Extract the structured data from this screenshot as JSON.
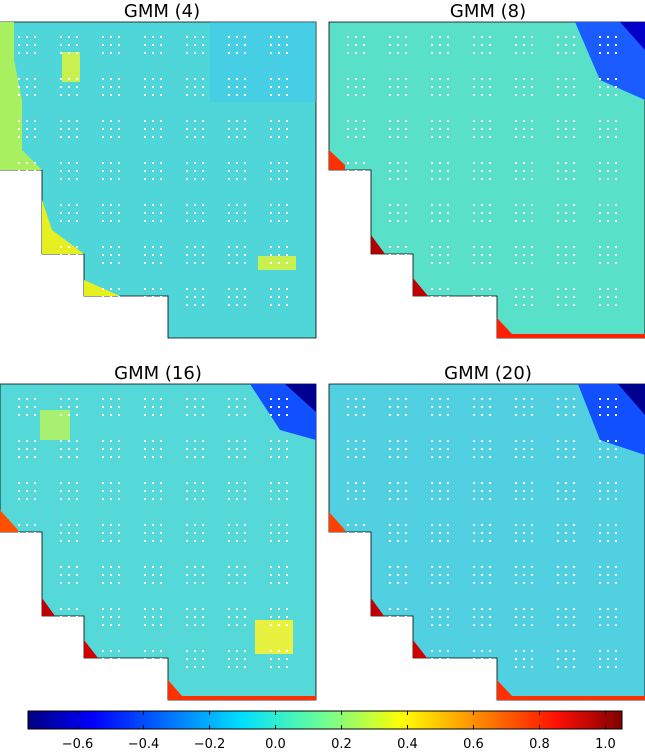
{
  "chart_data": {
    "type": "heatmap",
    "panels": [
      {
        "title": "GMM (4)"
      },
      {
        "title": "GMM (8)"
      },
      {
        "title": "GMM (16)"
      },
      {
        "title": "GMM (20)"
      }
    ],
    "colormap": "jet",
    "colorbar": {
      "range": [
        -0.75,
        1.05
      ],
      "ticks": [
        -0.6,
        -0.4,
        -0.2,
        0.0,
        0.2,
        0.4,
        0.6,
        0.8,
        1.0
      ],
      "tick_labels": [
        "−0.6",
        "−0.4",
        "−0.2",
        "0.0",
        "0.2",
        "0.4",
        "0.6",
        "0.8",
        "1.0"
      ],
      "orientation": "horizontal"
    },
    "grid": false
  }
}
